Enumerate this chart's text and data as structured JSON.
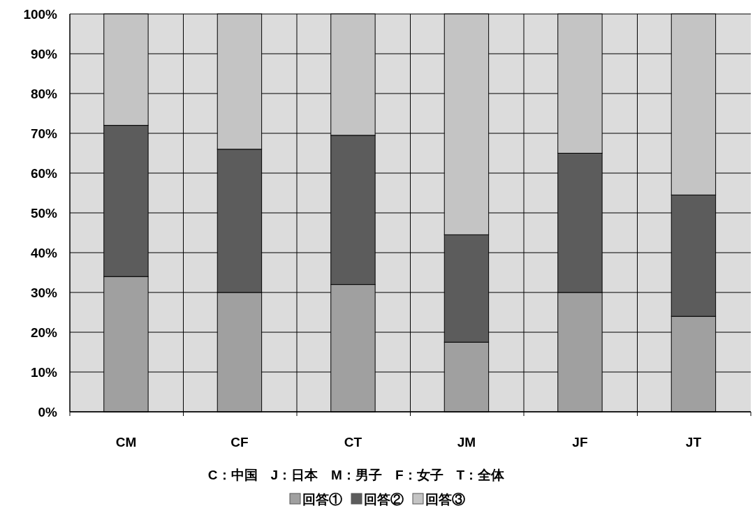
{
  "chart_data": {
    "type": "bar",
    "stacked": true,
    "categories": [
      "CM",
      "CF",
      "CT",
      "JM",
      "JF",
      "JT"
    ],
    "series": [
      {
        "name": "回答①",
        "color": "#a0a0a0",
        "values": [
          34,
          30,
          32,
          17.5,
          30,
          24
        ]
      },
      {
        "name": "回答②",
        "color": "#5c5c5c",
        "values": [
          38,
          36,
          37.5,
          27,
          35,
          30.5
        ]
      },
      {
        "name": "回答③",
        "color": "#c4c4c4",
        "values": [
          28,
          34,
          30.5,
          55.5,
          35,
          45.5
        ]
      }
    ],
    "ylim": [
      0,
      100
    ],
    "yticks": [
      {
        "value": 0,
        "label": "0%"
      },
      {
        "value": 10,
        "label": "10%"
      },
      {
        "value": 20,
        "label": "20%"
      },
      {
        "value": 30,
        "label": "30%"
      },
      {
        "value": 40,
        "label": "40%"
      },
      {
        "value": 50,
        "label": "50%"
      },
      {
        "value": 60,
        "label": "60%"
      },
      {
        "value": 70,
        "label": "70%"
      },
      {
        "value": 80,
        "label": "80%"
      },
      {
        "value": 90,
        "label": "90%"
      },
      {
        "value": 100,
        "label": "100%"
      }
    ],
    "annotations": [
      "C：中国　J：日本　M：男子　F：女子　T：全体"
    ],
    "grid": true,
    "legend": "bottom"
  }
}
